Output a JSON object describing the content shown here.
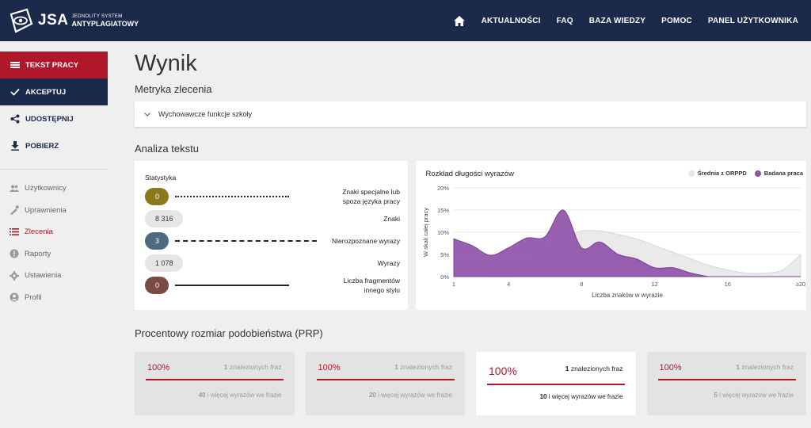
{
  "header": {
    "logo_abbr": "JSA",
    "logo_line1": "JEDNOLITY SYSTEM",
    "logo_line2": "ANTYPLAGIATOWY",
    "nav": [
      "AKTUALNOŚCI",
      "FAQ",
      "BAZA WIEDZY",
      "POMOC",
      "PANEL UŻYTKOWNIKA"
    ]
  },
  "sidebar": {
    "actions": [
      {
        "label": "TEKST PRACY",
        "icon": "document-icon"
      },
      {
        "label": "AKCEPTUJ",
        "icon": "check-icon"
      },
      {
        "label": "UDOSTĘPNIJ",
        "icon": "share-icon"
      },
      {
        "label": "POBIERZ",
        "icon": "download-icon"
      }
    ],
    "items": [
      {
        "label": "Użytkownicy",
        "icon": "users-icon"
      },
      {
        "label": "Uprawnienia",
        "icon": "permissions-icon"
      },
      {
        "label": "Zlecenia",
        "icon": "list-icon"
      },
      {
        "label": "Raporty",
        "icon": "reports-icon"
      },
      {
        "label": "Ustawienia",
        "icon": "gear-icon"
      },
      {
        "label": "Profil",
        "icon": "profile-icon"
      }
    ],
    "active_item": "Zlecenia"
  },
  "main": {
    "title": "Wynik",
    "metryka_title": "Metryka zlecenia",
    "metryka_item": "Wychowawcze funkcje szkoły",
    "analiza_title": "Analiza tekstu",
    "stats": {
      "title": "Statystyka",
      "rows": [
        {
          "value": "0",
          "label_1": "Znaki specjalne lub",
          "label_2": "spoza języka pracy"
        },
        {
          "value": "8 316",
          "label_1": "Znaki",
          "label_2": ""
        },
        {
          "value": "3",
          "label_1": "Nierozpoznane wyrazy",
          "label_2": ""
        },
        {
          "value": "1 078",
          "label_1": "Wyrazy",
          "label_2": ""
        },
        {
          "value": "0",
          "label_1": "Liczba fragmentów",
          "label_2": "innego stylu"
        }
      ]
    },
    "prp_title": "Procentowy rozmiar podobieństwa (PRP)",
    "cards": [
      {
        "pct": "100%",
        "found_num": "1",
        "found_text": " znalezionych fraz",
        "more_num": "40",
        "more_text": " i więcej wyrazów we frazie"
      },
      {
        "pct": "100%",
        "found_num": "1",
        "found_text": " znalezionych fraz",
        "more_num": "20",
        "more_text": " i więcej wyrazów we frazie"
      },
      {
        "pct": "100%",
        "found_num": "1",
        "found_text": " znalezionych fraz",
        "more_num": "10",
        "more_text": " i więcej wyrazów we frazie"
      },
      {
        "pct": "100%",
        "found_num": "1",
        "found_text": " znalezionych fraz",
        "more_num": "5",
        "more_text": " i więcej wyrazów we frazie"
      }
    ],
    "active_card": 2
  },
  "colors": {
    "navy": "#1b2a4a",
    "red": "#b0172b",
    "purple": "#8e4fa8",
    "avg_grey": "#e6e6e6",
    "pill_olive": "#8a7a1c",
    "pill_slate": "#4f6a80",
    "pill_brown": "#7b4a44"
  },
  "chart_data": {
    "type": "area",
    "title": "Rozkład długości wyrazów",
    "xlabel": "Liczba znaków w wyrazie",
    "ylabel": "W skali całej pracy",
    "x_ticks": [
      "1",
      "4",
      "8",
      "12",
      "16",
      "≥20"
    ],
    "y_ticks": [
      "0%",
      "5%",
      "10%",
      "15%",
      "20%"
    ],
    "xlim": [
      1,
      20
    ],
    "ylim": [
      0,
      20
    ],
    "legend_position": "top-right",
    "series": [
      {
        "name": "Średnia z ORPPD",
        "color": "#e6e6e6",
        "x": [
          1,
          2,
          3,
          4,
          5,
          6,
          7,
          8,
          9,
          10,
          11,
          12,
          13,
          14,
          15,
          16,
          17,
          18,
          19,
          20
        ],
        "values": [
          0,
          0,
          0,
          0.5,
          2.5,
          6,
          9,
          10.3,
          10.3,
          9.5,
          8.5,
          7,
          5.5,
          4,
          2.5,
          1.5,
          0.8,
          0.8,
          1.5,
          5
        ]
      },
      {
        "name": "Badana praca",
        "color": "#8e4fa8",
        "x": [
          1,
          2,
          3,
          4,
          5,
          6,
          7,
          8,
          9,
          10,
          11,
          12,
          13,
          14,
          15,
          16,
          17,
          18,
          19,
          20
        ],
        "values": [
          8.5,
          7,
          4.8,
          6.5,
          8.7,
          9,
          15,
          6.5,
          7.8,
          5,
          4,
          2,
          2,
          0.8,
          0,
          0,
          0,
          0,
          0,
          0
        ]
      }
    ]
  }
}
